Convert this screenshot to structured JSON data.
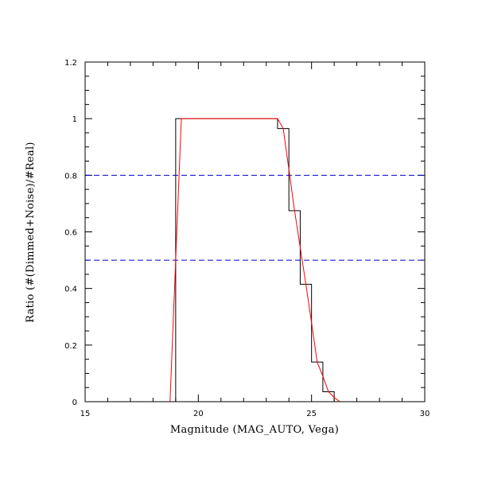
{
  "chart_data": {
    "type": "line",
    "title": "",
    "xlabel": "Magnitude (MAG_AUTO, Vega)",
    "ylabel": "Ratio (#(Dimmed+Noise)/#Real)",
    "xlim": [
      15,
      30
    ],
    "ylim": [
      0,
      1.2
    ],
    "x_ticks": [
      15,
      20,
      25,
      30
    ],
    "y_ticks": [
      0,
      0.2,
      0.4,
      0.6,
      0.8,
      1,
      1.2
    ],
    "x_tick_labels": [
      "15",
      "20",
      "25",
      "30"
    ],
    "y_tick_labels": [
      "0",
      "0.2",
      "0.4",
      "0.6",
      "0.8",
      "1",
      "1.2"
    ],
    "grid": false,
    "reference_lines": [
      {
        "y": 0.8,
        "color": "#0000cc",
        "style": "dashed"
      },
      {
        "y": 0.5,
        "color": "#0000cc",
        "style": "dashed"
      }
    ],
    "series": [
      {
        "style": "histogram-step",
        "color": "#000000",
        "bin_edges": [
          15,
          19.0,
          19.5,
          20.0,
          20.5,
          21.0,
          21.5,
          22.0,
          22.5,
          23.0,
          23.5,
          24.0,
          24.5,
          25.0,
          25.5,
          26.0,
          26.5,
          30
        ],
        "values": [
          0,
          1.0,
          1.0,
          1.0,
          1.0,
          1.0,
          1.0,
          1.0,
          1.0,
          1.0,
          0.965,
          0.675,
          0.415,
          0.14,
          0.035,
          0.0,
          0.0
        ]
      },
      {
        "style": "line",
        "color": "#ff0000",
        "x": [
          18.75,
          19.25,
          23.5,
          23.75,
          24.0,
          24.25,
          24.5,
          24.75,
          25.0,
          25.25,
          25.5,
          25.75,
          26.0,
          26.25,
          26.5,
          30
        ],
        "y": [
          0,
          1.0,
          1.0,
          0.965,
          0.82,
          0.675,
          0.545,
          0.415,
          0.28,
          0.14,
          0.09,
          0.035,
          0.015,
          0,
          0,
          0
        ]
      }
    ]
  }
}
